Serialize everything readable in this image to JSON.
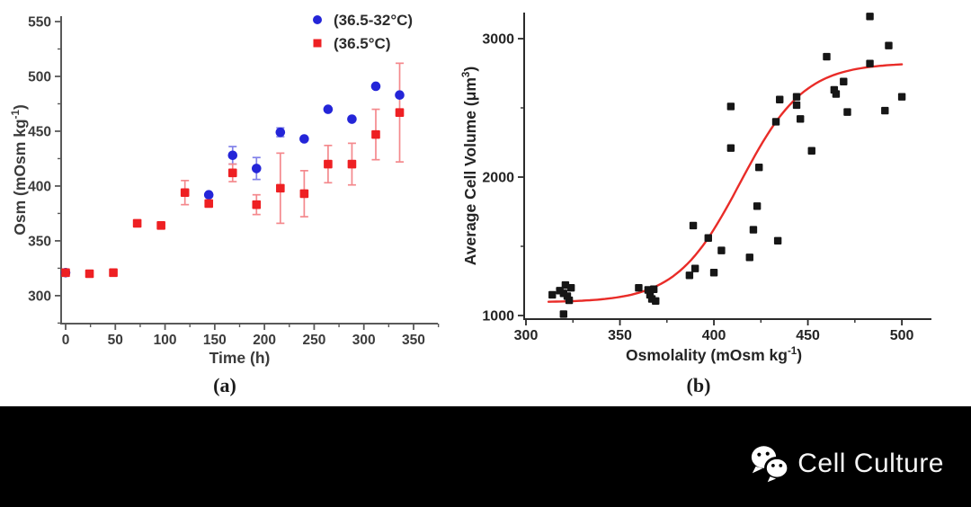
{
  "page": {
    "background": "#ffffff",
    "footer_background": "#000000"
  },
  "footer": {
    "brand": "Cell Culture",
    "icon": "wechat-icon"
  },
  "chart_data": [
    {
      "id": "a",
      "type": "scatter",
      "caption": "(a)",
      "title": "",
      "xlabel": "Time (h)",
      "ylabel": "Osm (mOsm kg⁻¹)",
      "xlim": [
        0,
        375
      ],
      "ylim": [
        275,
        550
      ],
      "x_major_ticks": [
        0,
        50,
        100,
        150,
        200,
        250,
        300,
        350
      ],
      "x_minor_ticks": [
        25,
        75,
        125,
        175,
        225,
        275,
        325,
        375
      ],
      "y_major_ticks": [
        300,
        350,
        400,
        450,
        500,
        550
      ],
      "y_minor_ticks": [
        275,
        325,
        375,
        425,
        475,
        525
      ],
      "grid": false,
      "legend_position": "top-right",
      "series": [
        {
          "name": "(36.5-32°C)",
          "marker": "circle",
          "color": "#2425d8",
          "error_color": "#8080e9",
          "points": [
            [
              0,
              321,
              0
            ],
            [
              144,
              392,
              0
            ],
            [
              168,
              428,
              8
            ],
            [
              192,
              416,
              10
            ],
            [
              216,
              449,
              4
            ],
            [
              240,
              443,
              0
            ],
            [
              264,
              470,
              0
            ],
            [
              288,
              461,
              0
            ],
            [
              312,
              491,
              0
            ],
            [
              336,
              483,
              0
            ]
          ]
        },
        {
          "name": "(36.5°C)",
          "marker": "square",
          "color": "#ee2023",
          "error_color": "#f4898d",
          "points": [
            [
              0,
              321,
              0
            ],
            [
              24,
              320,
              0
            ],
            [
              48,
              321,
              0
            ],
            [
              72,
              366,
              0
            ],
            [
              96,
              364,
              0
            ],
            [
              120,
              394,
              11
            ],
            [
              144,
              384,
              0
            ],
            [
              168,
              412,
              8
            ],
            [
              192,
              383,
              9
            ],
            [
              216,
              398,
              32
            ],
            [
              240,
              393,
              21
            ],
            [
              264,
              420,
              17
            ],
            [
              288,
              420,
              19
            ],
            [
              312,
              447,
              23
            ],
            [
              336,
              467,
              45
            ]
          ]
        }
      ]
    },
    {
      "id": "b",
      "type": "scatter",
      "caption": "(b)",
      "title": "",
      "xlabel": "Osmolality (mOsm kg⁻¹)",
      "ylabel": "Average Cell Volume (μm³)",
      "xlim": [
        300,
        515
      ],
      "ylim": [
        975,
        3200
      ],
      "x_major_ticks": [
        300,
        350,
        400,
        450,
        500
      ],
      "x_minor_ticks": [
        325,
        375,
        425,
        475
      ],
      "y_major_ticks": [
        1000,
        2000,
        3000
      ],
      "y_minor_ticks": [
        1500,
        2500
      ],
      "grid": false,
      "legend_position": "none",
      "series": [
        {
          "name": "average-cell-volume",
          "marker": "square",
          "color": "#161616",
          "points": [
            [
              314,
              1150
            ],
            [
              318,
              1180
            ],
            [
              320,
              1010
            ],
            [
              320,
              1160
            ],
            [
              321,
              1220
            ],
            [
              322,
              1140
            ],
            [
              323,
              1110
            ],
            [
              324,
              1200
            ],
            [
              360,
              1200
            ],
            [
              365,
              1185
            ],
            [
              366,
              1150
            ],
            [
              367,
              1120
            ],
            [
              368,
              1190
            ],
            [
              369,
              1105
            ],
            [
              387,
              1290
            ],
            [
              389,
              1650
            ],
            [
              390,
              1340
            ],
            [
              397,
              1560
            ],
            [
              400,
              1310
            ],
            [
              404,
              1470
            ],
            [
              409,
              2210
            ],
            [
              409,
              2510
            ],
            [
              419,
              1420
            ],
            [
              421,
              1620
            ],
            [
              423,
              1790
            ],
            [
              424,
              2070
            ],
            [
              434,
              1540
            ],
            [
              433,
              2400
            ],
            [
              435,
              2560
            ],
            [
              444,
              2520
            ],
            [
              444,
              2580
            ],
            [
              446,
              2420
            ],
            [
              452,
              2190
            ],
            [
              460,
              2870
            ],
            [
              464,
              2630
            ],
            [
              465,
              2600
            ],
            [
              469,
              2690
            ],
            [
              471,
              2470
            ],
            [
              483,
              2820
            ],
            [
              483,
              3160
            ],
            [
              491,
              2480
            ],
            [
              493,
              2950
            ],
            [
              500,
              2580
            ]
          ]
        }
      ],
      "fit_curve": {
        "type": "logistic",
        "color": "#e92c28",
        "base": 1095,
        "amplitude": 1730,
        "x0": 414,
        "k": 17,
        "x_start": 312,
        "x_end": 500
      }
    }
  ]
}
